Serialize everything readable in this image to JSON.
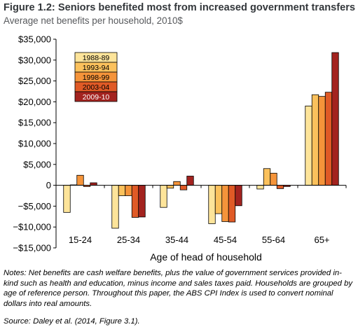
{
  "figure": {
    "title": "Figure 1.2: Seniors benefited most from increased government transfers",
    "subtitle": "Average net benefits per household, 2010$",
    "notes": "Notes: Net benefits are cash welfare benefits, plus the value of government services provided in-kind such as health and education, minus income and sales taxes paid. Households are grouped by age of reference person. Throughout this paper, the ABS CPI Index is used to convert nominal dollars into real amounts.",
    "source": "Source: Daley et al. (2014, Figure 3.1)."
  },
  "chart_data": {
    "type": "bar",
    "title": "Figure 1.2: Seniors benefited most from increased government transfers",
    "subtitle": "Average net benefits per household, 2010$",
    "xlabel": "Age of head of household",
    "ylabel": "",
    "ylim": [
      -15000,
      35000
    ],
    "yticks": [
      35000,
      30000,
      25000,
      20000,
      15000,
      10000,
      5000,
      0,
      -5000,
      -10000,
      -15000
    ],
    "ytick_labels": [
      "$35,000",
      "$30,000",
      "$25,000",
      "$20,000",
      "$15,000",
      "$10,000",
      "$5,000",
      "0",
      "−$5,000",
      "−$10,000",
      "−$15,000"
    ],
    "grid": false,
    "legend_position": "top-left",
    "categories": [
      "15-24",
      "25-34",
      "35-44",
      "45-54",
      "55-64",
      "65+"
    ],
    "series": [
      {
        "name": "1988-89",
        "color": "#fde49a",
        "values": [
          -6500,
          -10300,
          -5300,
          -9200,
          -900,
          19000
        ]
      },
      {
        "name": "1993-94",
        "color": "#fbc15c",
        "values": [
          100,
          -2500,
          -700,
          -6800,
          4000,
          21700
        ]
      },
      {
        "name": "1998-99",
        "color": "#f5943a",
        "values": [
          2400,
          -2500,
          900,
          -8700,
          2900,
          21300
        ]
      },
      {
        "name": "2003-04",
        "color": "#e05a26",
        "values": [
          -300,
          -7700,
          -1100,
          -8800,
          -800,
          22300
        ]
      },
      {
        "name": "2009-10",
        "color": "#a3231f",
        "values": [
          600,
          -7600,
          2200,
          -4900,
          -300,
          31800
        ]
      }
    ]
  }
}
